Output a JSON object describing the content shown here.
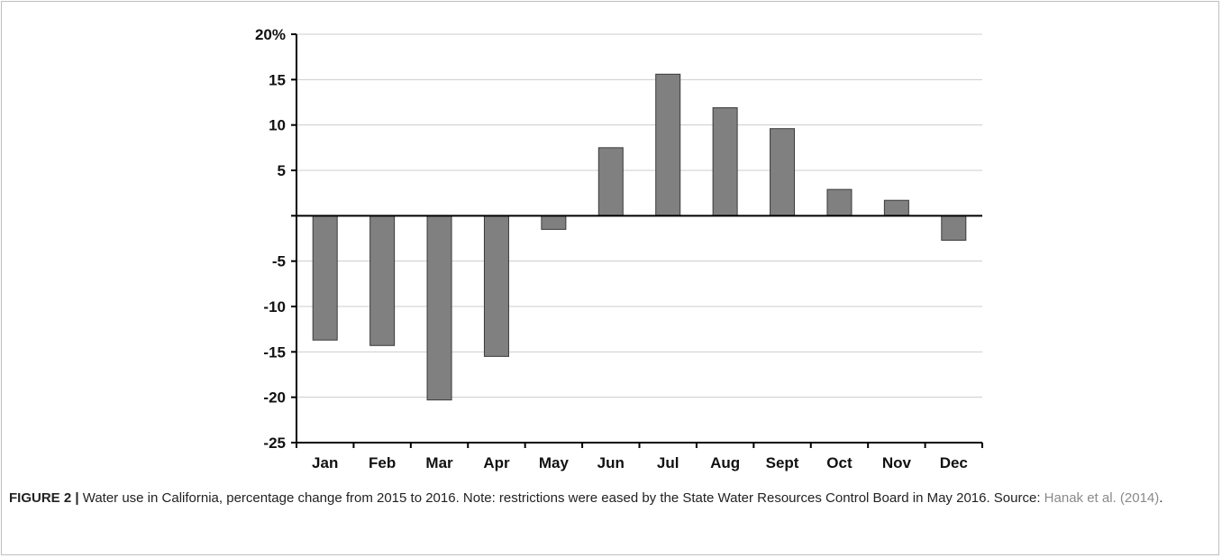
{
  "chart_data": {
    "type": "bar",
    "title": "",
    "xlabel": "",
    "ylabel": "",
    "categories": [
      "Jan",
      "Feb",
      "Mar",
      "Apr",
      "May",
      "Jun",
      "Jul",
      "Aug",
      "Sept",
      "Oct",
      "Nov",
      "Dec"
    ],
    "values": [
      -13.7,
      -14.3,
      -20.3,
      -15.5,
      -1.5,
      7.5,
      15.6,
      11.9,
      9.6,
      2.9,
      1.7,
      -2.7
    ],
    "ylim": [
      -25,
      20
    ],
    "yticks": [
      20,
      15,
      10,
      5,
      0,
      -5,
      -10,
      -15,
      -20,
      -25
    ],
    "ytick_labels": [
      "20%",
      "15",
      "10",
      "5",
      "",
      "-5",
      "-10",
      "-15",
      "-20",
      "-25"
    ],
    "grid": true,
    "bar_color": "#808080",
    "bar_edge_color": "#3a3a3a",
    "grid_color": "#cccccc",
    "axis_color": "#000000"
  },
  "caption": {
    "label": "FIGURE 2 |",
    "text": " Water use in California, percentage change from 2015 to 2016. Note: restrictions were eased by the State Water Resources Control Board in May 2016. Source: ",
    "source_link": "Hanak et al. (2014)",
    "end": "."
  }
}
